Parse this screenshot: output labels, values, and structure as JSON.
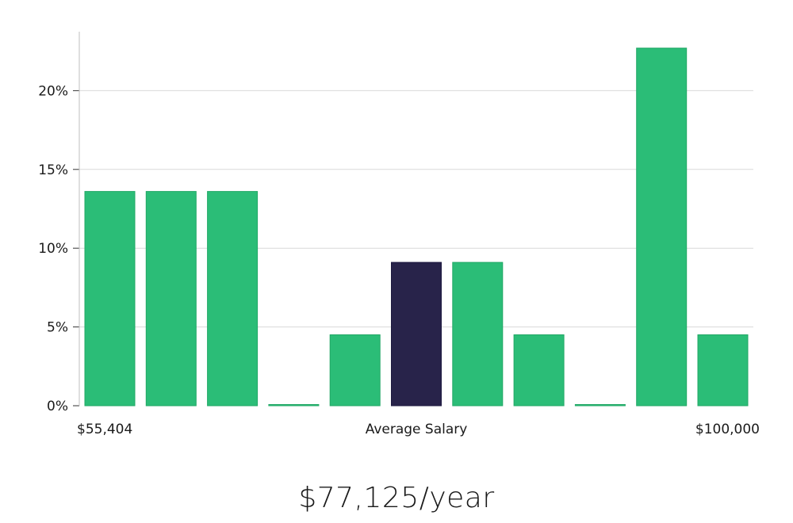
{
  "chart_data": {
    "type": "bar",
    "title": "",
    "ylabel": "",
    "xlabel": "",
    "ylim": [
      0,
      23
    ],
    "yticks": [
      {
        "value": 0,
        "label": "0%"
      },
      {
        "value": 5,
        "label": "5%"
      },
      {
        "value": 10,
        "label": "10%"
      },
      {
        "value": 15,
        "label": "15%"
      },
      {
        "value": 20,
        "label": "20%"
      }
    ],
    "values": [
      13.6,
      13.6,
      13.6,
      0,
      4.5,
      9.1,
      9.1,
      4.5,
      0,
      22.7,
      4.5
    ],
    "highlight_index": 5,
    "colors": {
      "bar": "#2bbd77",
      "highlight": "#28234a",
      "grid": "#d9d9d9",
      "axis": "#bfbfbf"
    },
    "x_labels": {
      "min": "$55,404",
      "center": "Average Salary",
      "max": "$100,000"
    }
  },
  "average_salary": "$77,125/year"
}
